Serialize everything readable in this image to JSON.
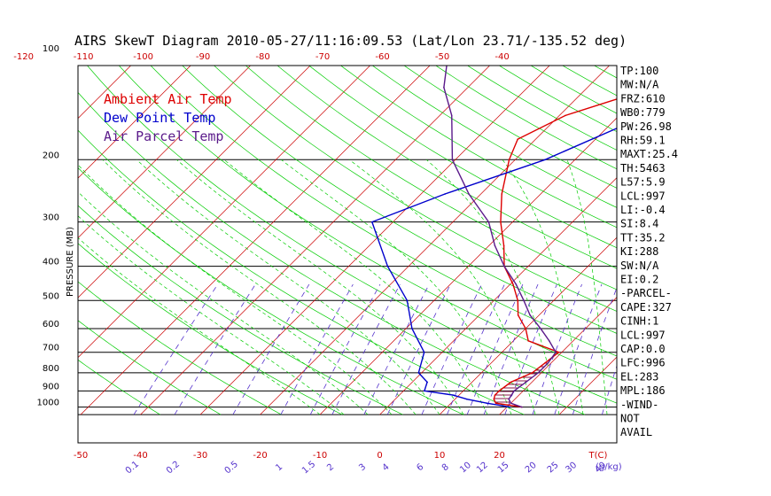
{
  "title": "AIRS SkewT Diagram 2010-05-27/11:16:09.53 (Lat/Lon 23.71/-135.52 deg)",
  "colors": {
    "ambient": "#dd0000",
    "dewpoint": "#0000cc",
    "parcel": "#5a1a8a",
    "isotherm": "#cc0000",
    "dry_adiabat": "#00cc00",
    "moist_adiabat": "#00cc00",
    "mixing_ratio": "#5533cc",
    "axis_text": "#cc0000",
    "mixing_text": "#5533cc"
  },
  "legend": [
    {
      "label": "Ambient Air Temp",
      "color": "#dd0000"
    },
    {
      "label": "Dew Point Temp",
      "color": "#0000cc"
    },
    {
      "label": "Air Parcel Temp",
      "color": "#5a1a8a"
    }
  ],
  "chart_data": {
    "type": "line",
    "title": "AIRS SkewT Diagram 2010-05-27/11:16:09.53 (Lat/Lon 23.71/-135.52 deg)",
    "ylabel": "PRESSURE (MB)",
    "xlabel": "T(C)",
    "y_scale": "log",
    "ylim": [
      1050,
      100
    ],
    "pressure_ticks": [
      100,
      200,
      300,
      400,
      500,
      600,
      700,
      800,
      900,
      1000
    ],
    "bottom_temp_ticks": [
      -50,
      -40,
      -30,
      -20,
      -10,
      0,
      10,
      20
    ],
    "top_temp_ticks": [
      -120,
      -110,
      -100,
      -90,
      -80,
      -70,
      -60,
      -50,
      -40
    ],
    "mixing_ratio_labels": [
      "0.1",
      "0.2",
      "0.5",
      "1",
      "1.5",
      "2",
      "3",
      "4",
      "6",
      "8",
      "10",
      "12",
      "15",
      "20",
      "25",
      "30",
      "40"
    ],
    "mixing_ratio_unit": "g/kg",
    "series": [
      {
        "name": "Ambient Air Temp",
        "points": [
          [
            1000,
            22.5
          ],
          [
            975,
            17.5
          ],
          [
            950,
            16.5
          ],
          [
            925,
            16.0
          ],
          [
            900,
            16.0
          ],
          [
            850,
            16.5
          ],
          [
            800,
            18.5
          ],
          [
            750,
            19.0
          ],
          [
            700,
            19.5
          ],
          [
            650,
            12.5
          ],
          [
            600,
            10.0
          ],
          [
            550,
            6.5
          ],
          [
            500,
            4.0
          ],
          [
            450,
            0.5
          ],
          [
            400,
            -4.0
          ],
          [
            350,
            -7.5
          ],
          [
            300,
            -12.0
          ],
          [
            250,
            -16.5
          ],
          [
            200,
            -21.0
          ],
          [
            175,
            -23.0
          ],
          [
            150,
            -19.0
          ],
          [
            125,
            -9.0
          ],
          [
            100,
            5.0
          ]
        ]
      },
      {
        "name": "Dew Point Temp",
        "points": [
          [
            1000,
            20.5
          ],
          [
            975,
            16.0
          ],
          [
            950,
            12.0
          ],
          [
            925,
            9.0
          ],
          [
            900,
            3.5
          ],
          [
            850,
            2.5
          ],
          [
            800,
            -0.5
          ],
          [
            700,
            -3.0
          ],
          [
            600,
            -9.0
          ],
          [
            500,
            -14.5
          ],
          [
            400,
            -23.5
          ],
          [
            300,
            -33.5
          ],
          [
            250,
            -26.0
          ],
          [
            200,
            -15.0
          ],
          [
            150,
            -5.5
          ],
          [
            100,
            12.0
          ]
        ]
      },
      {
        "name": "Air Parcel Temp",
        "points": [
          [
            1000,
            22.5
          ],
          [
            975,
            20.0
          ],
          [
            950,
            19.0
          ],
          [
            900,
            18.5
          ],
          [
            850,
            19.0
          ],
          [
            800,
            19.5
          ],
          [
            750,
            19.5
          ],
          [
            700,
            19.0
          ],
          [
            650,
            16.0
          ],
          [
            600,
            12.5
          ],
          [
            550,
            8.5
          ],
          [
            500,
            5.0
          ],
          [
            450,
            1.0
          ],
          [
            400,
            -4.0
          ],
          [
            350,
            -9.0
          ],
          [
            300,
            -14.0
          ],
          [
            250,
            -22.0
          ],
          [
            200,
            -30.5
          ],
          [
            150,
            -38.0
          ],
          [
            125,
            -44.0
          ],
          [
            100,
            -49.0
          ]
        ]
      }
    ]
  },
  "indices": [
    "TP:100",
    "MW:N/A",
    "FRZ:610",
    "WB0:779",
    "PW:26.98",
    "RH:59.1",
    "MAXT:25.4",
    "TH:5463",
    "L57:5.9",
    "LCL:997",
    "LI:-0.4",
    "SI:8.4",
    "TT:35.2",
    "KI:288",
    "SW:N/A",
    "EI:0.2",
    "-PARCEL-",
    "CAPE:327",
    "CINH:1",
    "LCL:997",
    "CAP:0.0",
    "LFC:996",
    "EL:283",
    "MPL:186",
    "-WIND-",
    "NOT",
    "AVAIL"
  ]
}
